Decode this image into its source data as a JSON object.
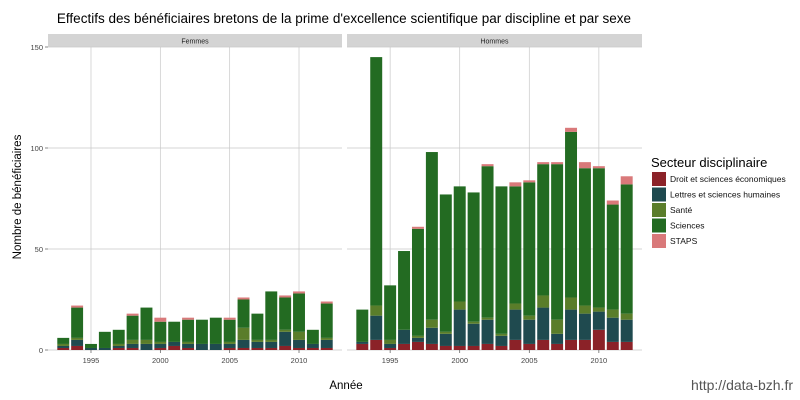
{
  "chart_data": {
    "type": "bar",
    "stacked": true,
    "title": "Effectifs des bénéficiaires bretons de la prime d'excellence scientifique par discipline et par sexe",
    "xlabel": "Année",
    "ylabel": "Nombre de bénéficiaires",
    "ylim": [
      0,
      150
    ],
    "y_ticks": [
      0,
      50,
      100,
      150
    ],
    "x_ticks": [
      1995,
      2000,
      2005,
      2010
    ],
    "xlim": [
      1991.9,
      2013.1
    ],
    "grid": true,
    "legend": {
      "title": "Secteur disciplinaire",
      "position": "right",
      "entries": [
        {
          "name": "Droit et sciences économiques",
          "color": "#8b2228"
        },
        {
          "name": "Lettres et sciences humaines",
          "color": "#1f4a4f"
        },
        {
          "name": "Santé",
          "color": "#5a7d2a"
        },
        {
          "name": "Sciences",
          "color": "#236b22"
        },
        {
          "name": "STAPS",
          "color": "#d9797a"
        }
      ]
    },
    "order": [
      "Droit et sciences économiques",
      "Lettres et sciences humaines",
      "Santé",
      "Sciences",
      "STAPS"
    ],
    "panels": [
      {
        "label": "Femmes",
        "years": [
          1993,
          1994,
          1995,
          1996,
          1997,
          1998,
          1999,
          2000,
          2001,
          2002,
          2003,
          2004,
          2005,
          2006,
          2007,
          2008,
          2009,
          2010,
          2011,
          2012
        ],
        "series": [
          {
            "name": "Droit et sciences économiques",
            "values": [
              1,
              2,
              0,
              0,
              1,
              1,
              0,
              1,
              2,
              1,
              0,
              0,
              1,
              1,
              1,
              1,
              2,
              1,
              1,
              1
            ]
          },
          {
            "name": "Lettres et sciences humaines",
            "values": [
              1,
              3,
              1,
              1,
              1,
              2,
              3,
              2,
              2,
              2,
              3,
              3,
              2,
              4,
              3,
              3,
              7,
              4,
              2,
              4
            ]
          },
          {
            "name": "Santé",
            "values": [
              1,
              1,
              0,
              0,
              1,
              2,
              2,
              1,
              0,
              1,
              0,
              0,
              1,
              6,
              1,
              1,
              1,
              4,
              0,
              1
            ]
          },
          {
            "name": "Sciences",
            "values": [
              3,
              15,
              2,
              8,
              7,
              12,
              16,
              10,
              10,
              11,
              12,
              13,
              11,
              14,
              13,
              24,
              16,
              19,
              7,
              17
            ]
          },
          {
            "name": "STAPS",
            "values": [
              0,
              1,
              0,
              0,
              0,
              1,
              0,
              2,
              0,
              1,
              0,
              0,
              1,
              1,
              0,
              0,
              1,
              1,
              0,
              1
            ]
          }
        ]
      },
      {
        "label": "Hommes",
        "years": [
          1993,
          1994,
          1995,
          1996,
          1997,
          1998,
          1999,
          2000,
          2001,
          2002,
          2003,
          2004,
          2005,
          2006,
          2007,
          2008,
          2009,
          2010,
          2011,
          2012
        ],
        "series": [
          {
            "name": "Droit et sciences économiques",
            "values": [
              3,
              5,
              1,
              3,
              4,
              3,
              2,
              2,
              2,
              3,
              2,
              5,
              3,
              5,
              3,
              5,
              5,
              10,
              4,
              4
            ]
          },
          {
            "name": "Lettres et sciences humaines",
            "values": [
              1,
              12,
              2,
              7,
              2,
              8,
              6,
              18,
              11,
              12,
              5,
              15,
              12,
              16,
              5,
              15,
              13,
              9,
              12,
              11
            ]
          },
          {
            "name": "Santé",
            "values": [
              0,
              5,
              2,
              0,
              1,
              4,
              1,
              4,
              1,
              1,
              1,
              3,
              2,
              6,
              7,
              6,
              4,
              2,
              4,
              3
            ]
          },
          {
            "name": "Sciences",
            "values": [
              16,
              123,
              27,
              39,
              53,
              83,
              68,
              57,
              64,
              75,
              73,
              58,
              66,
              65,
              77,
              82,
              68,
              69,
              52,
              64
            ]
          },
          {
            "name": "STAPS",
            "values": [
              0,
              0,
              0,
              0,
              1,
              0,
              0,
              0,
              0,
              1,
              0,
              2,
              1,
              1,
              1,
              2,
              3,
              1,
              2,
              4
            ]
          }
        ]
      }
    ]
  },
  "watermark": "http://data-bzh.fr"
}
